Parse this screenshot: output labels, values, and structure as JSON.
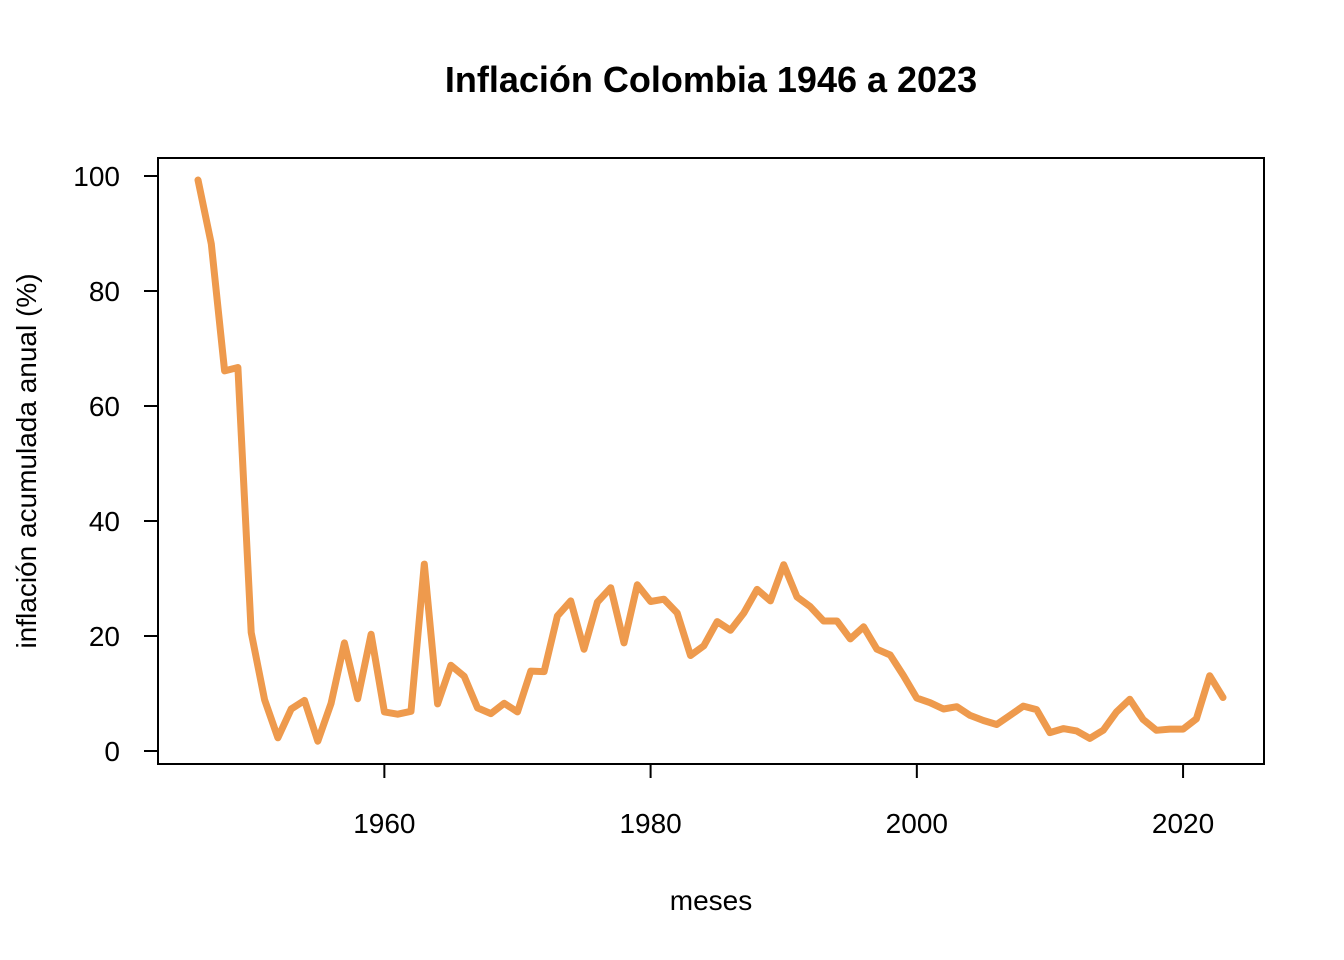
{
  "chart_data": {
    "type": "line",
    "title": "Inflación Colombia  1946 a 2023",
    "xlabel": "meses",
    "ylabel": "inflación acumulada anual (%)",
    "xlim": [
      1946,
      2023
    ],
    "ylim": [
      0,
      100
    ],
    "x_ticks": [
      1960,
      1980,
      2000,
      2020
    ],
    "y_ticks": [
      0,
      20,
      40,
      60,
      80,
      100
    ],
    "grid": false,
    "legend": "none",
    "series": [
      {
        "color": "#EE9A4D",
        "x": [
          1946,
          1947,
          1948,
          1949,
          1950,
          1951,
          1952,
          1953,
          1954,
          1955,
          1956,
          1957,
          1958,
          1959,
          1960,
          1961,
          1962,
          1963,
          1964,
          1965,
          1966,
          1967,
          1968,
          1969,
          1970,
          1971,
          1972,
          1973,
          1974,
          1975,
          1976,
          1977,
          1978,
          1979,
          1980,
          1981,
          1982,
          1983,
          1984,
          1985,
          1986,
          1987,
          1988,
          1989,
          1990,
          1991,
          1992,
          1993,
          1994,
          1995,
          1996,
          1997,
          1998,
          1999,
          2000,
          2001,
          2002,
          2003,
          2004,
          2005,
          2006,
          2007,
          2008,
          2009,
          2010,
          2011,
          2012,
          2013,
          2014,
          2015,
          2016,
          2017,
          2018,
          2019,
          2020,
          2021,
          2022,
          2023
        ],
        "values": [
          99.3,
          88.2,
          66.1,
          66.7,
          20.6,
          8.9,
          2.3,
          7.3,
          8.8,
          1.7,
          8.3,
          18.8,
          9.1,
          20.3,
          6.8,
          6.4,
          6.9,
          32.5,
          8.2,
          14.9,
          13.0,
          7.5,
          6.5,
          8.3,
          6.8,
          13.9,
          13.8,
          23.5,
          26.1,
          17.7,
          25.9,
          28.4,
          18.8,
          28.9,
          26.0,
          26.4,
          24.0,
          16.6,
          18.3,
          22.5,
          21.0,
          24.0,
          28.1,
          26.1,
          32.4,
          26.8,
          25.1,
          22.6,
          22.6,
          19.5,
          21.6,
          17.7,
          16.7,
          13.1,
          9.2,
          8.4,
          7.3,
          7.7,
          6.2,
          5.3,
          4.6,
          6.2,
          7.8,
          7.2,
          3.2,
          3.9,
          3.5,
          2.2,
          3.6,
          6.8,
          9.0,
          5.5,
          3.6,
          3.8,
          3.8,
          5.6,
          13.1,
          9.3
        ]
      }
    ]
  }
}
